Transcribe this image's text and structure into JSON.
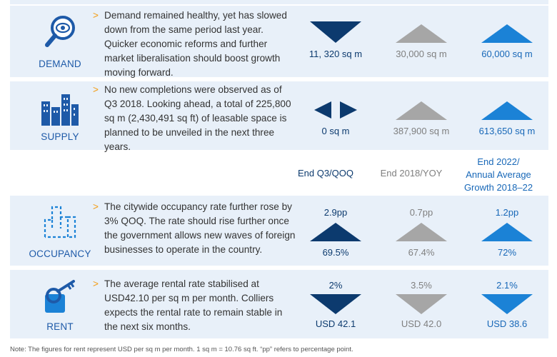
{
  "rows": {
    "demand": {
      "label": "DEMAND",
      "icon": "magnifier-eye-icon",
      "text": "Demand remained healthy, yet has slowed down from the same period last year. Quicker economic reforms and further market liberalisation should boost growth moving forward.",
      "col1": {
        "value": "11, 320 sq m",
        "trend": "down"
      },
      "col2": {
        "value": "30,000 sq m",
        "trend": "up"
      },
      "col3": {
        "value": "60,000 sq m",
        "trend": "up"
      }
    },
    "supply": {
      "label": "SUPPLY",
      "icon": "buildings-icon",
      "text": "No new completions were observed as of Q3 2018. Looking ahead, a total of 225,800 sq m (2,430,491 sq ft) of leasable space is planned to be unveiled in the next three years.",
      "col1": {
        "value": "0 sq m",
        "trend": "neutral"
      },
      "col2": {
        "value": "387,900 sq m",
        "trend": "up"
      },
      "col3": {
        "value": "613,650 sq m",
        "trend": "up"
      }
    },
    "occupancy": {
      "label": "OCCUPANCY",
      "icon": "floorplan-icon",
      "text": "The citywide occupancy rate further rose by 3% QOQ. The rate should rise further once the government allows new waves of foreign businesses to operate in the country.",
      "col1": {
        "top": "2.9pp",
        "bottom": "69.5%",
        "trend": "up"
      },
      "col2": {
        "top": "0.7pp",
        "bottom": "67.4%",
        "trend": "up"
      },
      "col3": {
        "top": "1.2pp",
        "bottom": "72%",
        "trend": "up"
      }
    },
    "rent": {
      "label": "RENT",
      "icon": "key-icon",
      "text": "The average rental rate stabilised at USD42.10 per sq m per month. Colliers expects the rental rate to remain stable in the next six months.",
      "col1": {
        "top": "2%",
        "bottom": "USD 42.1",
        "trend": "down"
      },
      "col2": {
        "top": "3.5%",
        "bottom": "USD 42.0",
        "trend": "down"
      },
      "col3": {
        "top": "2.1%",
        "bottom": "USD 38.6",
        "trend": "down"
      }
    }
  },
  "headers": {
    "col1": "End Q3/QOQ",
    "col2": "End 2018/YOY",
    "col3_line1": "End 2022/",
    "col3_line2": "Annual Average",
    "col3_line3": "Growth 2018–22"
  },
  "note": "Note: The figures for rent represent USD per sq m per month. 1 sq m = 10.76 sq ft. “pp” refers to percentage point.",
  "colors": {
    "dark": "#0c3a6e",
    "grey": "#a6a6a6",
    "light": "#1b82d6",
    "rowbg": "#e8f0f9",
    "bullet": "#f39c12"
  }
}
